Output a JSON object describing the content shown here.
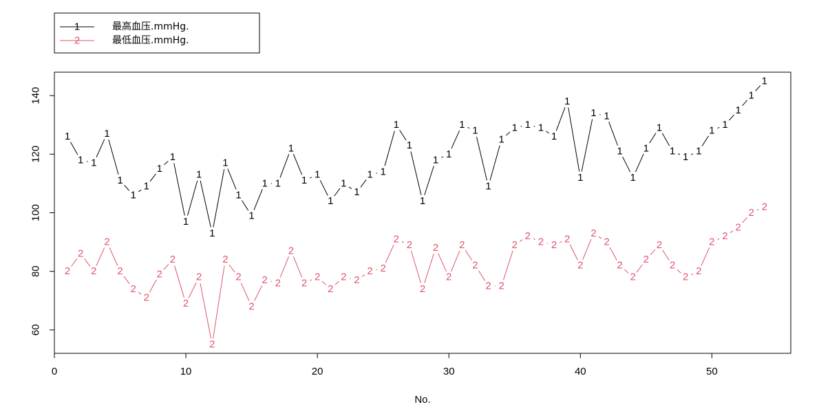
{
  "chart_data": {
    "type": "line",
    "xlabel": "No.",
    "ylabel": "",
    "xlim": [
      0,
      56
    ],
    "ylim": [
      52,
      148
    ],
    "x_ticks": [
      0,
      10,
      20,
      30,
      40,
      50
    ],
    "y_ticks": [
      60,
      80,
      100,
      120,
      140
    ],
    "legend_position": "top-left",
    "series": [
      {
        "name": "最高血压.mmHg.",
        "marker": "1",
        "color": "#000000",
        "x": [
          1,
          2,
          3,
          4,
          5,
          6,
          7,
          8,
          9,
          10,
          11,
          12,
          13,
          14,
          15,
          16,
          17,
          18,
          19,
          20,
          21,
          22,
          23,
          24,
          25,
          26,
          27,
          28,
          29,
          30,
          31,
          32,
          33,
          34,
          35,
          36,
          37,
          38,
          39,
          40,
          41,
          42,
          43,
          44,
          45,
          46,
          47,
          48,
          49,
          50,
          51,
          52,
          53,
          54
        ],
        "values": [
          126,
          118,
          117,
          127,
          111,
          106,
          109,
          115,
          119,
          97,
          113,
          93,
          117,
          106,
          99,
          110,
          110,
          122,
          111,
          113,
          104,
          110,
          107,
          113,
          114,
          130,
          123,
          104,
          118,
          120,
          130,
          128,
          109,
          125,
          129,
          130,
          129,
          126,
          138,
          112,
          134,
          133,
          121,
          112,
          122,
          129,
          121,
          119,
          121,
          128,
          130,
          135,
          140,
          145
        ]
      },
      {
        "name": "最低血压.mmHg.",
        "marker": "2",
        "color": "#DF536B",
        "x": [
          1,
          2,
          3,
          4,
          5,
          6,
          7,
          8,
          9,
          10,
          11,
          12,
          13,
          14,
          15,
          16,
          17,
          18,
          19,
          20,
          21,
          22,
          23,
          24,
          25,
          26,
          27,
          28,
          29,
          30,
          31,
          32,
          33,
          34,
          35,
          36,
          37,
          38,
          39,
          40,
          41,
          42,
          43,
          44,
          45,
          46,
          47,
          48,
          49,
          50,
          51,
          52,
          53,
          54
        ],
        "values": [
          80,
          86,
          80,
          90,
          80,
          74,
          71,
          79,
          84,
          69,
          78,
          55,
          84,
          78,
          68,
          77,
          76,
          87,
          76,
          78,
          74,
          78,
          77,
          80,
          81,
          91,
          89,
          74,
          88,
          78,
          89,
          82,
          75,
          75,
          89,
          92,
          90,
          89,
          91,
          82,
          93,
          90,
          82,
          78,
          84,
          89,
          82,
          78,
          80,
          90,
          92,
          95,
          100,
          102
        ]
      }
    ]
  }
}
